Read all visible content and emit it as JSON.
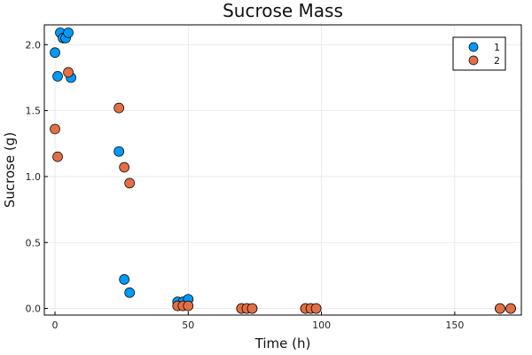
{
  "chart_data": {
    "type": "scatter",
    "title": "Sucrose Mass",
    "xlabel": "Time (h)",
    "ylabel": "Sucrose (g)",
    "xlim": [
      -4,
      175
    ],
    "ylim": [
      -0.05,
      2.15
    ],
    "xticks": [
      0,
      50,
      100,
      150
    ],
    "xtick_labels": [
      "0",
      "50",
      "100",
      "150"
    ],
    "yticks": [
      0,
      0.5,
      1,
      1.5,
      2
    ],
    "ytick_labels": [
      "0.0",
      "0.5",
      "1.0",
      "1.5",
      "2.0"
    ],
    "grid": true,
    "legend_position": "top-right",
    "series": [
      {
        "name": "1",
        "color": "#009AFA",
        "points": [
          {
            "x": 0,
            "y": 1.94
          },
          {
            "x": 1,
            "y": 1.76
          },
          {
            "x": 2,
            "y": 2.09
          },
          {
            "x": 3,
            "y": 2.05
          },
          {
            "x": 4,
            "y": 2.05
          },
          {
            "x": 5,
            "y": 2.09
          },
          {
            "x": 6,
            "y": 1.75
          },
          {
            "x": 24,
            "y": 1.19
          },
          {
            "x": 26,
            "y": 0.22
          },
          {
            "x": 28,
            "y": 0.12
          },
          {
            "x": 46,
            "y": 0.05
          },
          {
            "x": 48,
            "y": 0.05
          },
          {
            "x": 50,
            "y": 0.07
          },
          {
            "x": 70,
            "y": 0.0
          },
          {
            "x": 72,
            "y": 0.0
          },
          {
            "x": 74,
            "y": 0.0
          },
          {
            "x": 94,
            "y": 0.0
          },
          {
            "x": 96,
            "y": 0.0
          },
          {
            "x": 98,
            "y": 0.0
          },
          {
            "x": 167,
            "y": 0.0
          },
          {
            "x": 171,
            "y": 0.0
          }
        ]
      },
      {
        "name": "2",
        "color": "#E26F46",
        "points": [
          {
            "x": 0,
            "y": 1.36
          },
          {
            "x": 1,
            "y": 1.15
          },
          {
            "x": 5,
            "y": 1.79
          },
          {
            "x": 24,
            "y": 1.52
          },
          {
            "x": 26,
            "y": 1.07
          },
          {
            "x": 28,
            "y": 0.95
          },
          {
            "x": 46,
            "y": 0.02
          },
          {
            "x": 48,
            "y": 0.02
          },
          {
            "x": 50,
            "y": 0.02
          },
          {
            "x": 70,
            "y": 0.0
          },
          {
            "x": 72,
            "y": 0.0
          },
          {
            "x": 74,
            "y": 0.0
          },
          {
            "x": 94,
            "y": 0.0
          },
          {
            "x": 96,
            "y": 0.0
          },
          {
            "x": 98,
            "y": 0.0
          },
          {
            "x": 167,
            "y": 0.0
          },
          {
            "x": 171,
            "y": 0.0
          }
        ]
      }
    ]
  }
}
